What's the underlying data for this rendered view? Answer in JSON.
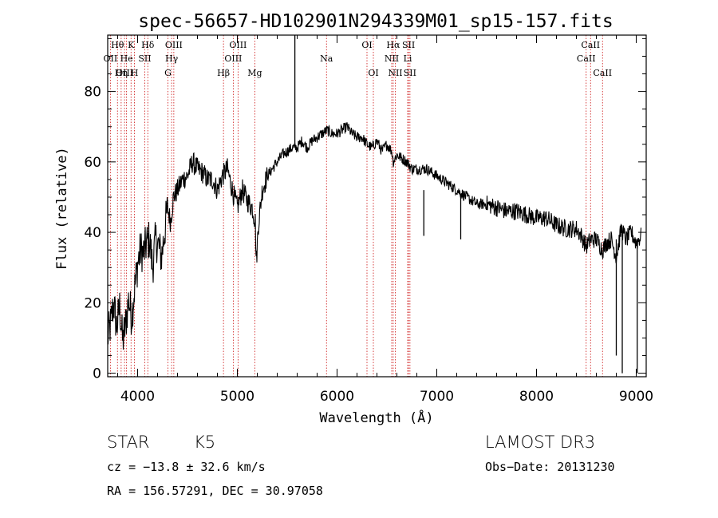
{
  "chart_data": {
    "type": "line",
    "title": "spec-56657-HD102901N294339M01_sp15-157.fits",
    "xlabel": "Wavelength (Å)",
    "ylabel": "Flux (relative)",
    "xlim": [
      3700,
      9100
    ],
    "ylim": [
      -1,
      96
    ],
    "xticks": [
      4000,
      5000,
      6000,
      7000,
      8000,
      9000
    ],
    "yticks": [
      0,
      20,
      40,
      60,
      80
    ],
    "series": [
      {
        "name": "flux",
        "x": [
          3700,
          3730,
          3760,
          3790,
          3820,
          3850,
          3880,
          3910,
          3940,
          3970,
          4000,
          4030,
          4060,
          4090,
          4120,
          4150,
          4180,
          4210,
          4240,
          4270,
          4300,
          4330,
          4360,
          4400,
          4450,
          4500,
          4550,
          4600,
          4650,
          4700,
          4750,
          4800,
          4850,
          4900,
          4950,
          5000,
          5050,
          5100,
          5150,
          5180,
          5190,
          5210,
          5250,
          5300,
          5350,
          5400,
          5450,
          5500,
          5550,
          5600,
          5650,
          5700,
          5750,
          5800,
          5850,
          5900,
          5950,
          6000,
          6050,
          6100,
          6150,
          6200,
          6250,
          6300,
          6350,
          6400,
          6450,
          6500,
          6550,
          6563,
          6600,
          6650,
          6700,
          6750,
          6800,
          6900,
          7000,
          7100,
          7200,
          7250,
          7300,
          7400,
          7500,
          7600,
          7700,
          7800,
          7900,
          8000,
          8100,
          8200,
          8300,
          8400,
          8450,
          8498,
          8542,
          8600,
          8662,
          8700,
          8750,
          8800,
          8850,
          8900,
          8950,
          9000,
          9050
        ],
        "y": [
          10,
          14,
          20,
          13,
          19,
          9,
          14,
          21,
          16,
          24,
          31,
          35,
          34,
          37,
          38,
          30,
          38,
          36,
          33,
          40,
          47,
          43,
          50,
          52,
          55,
          56,
          60,
          58,
          57,
          55,
          55,
          52,
          56,
          58,
          52,
          47,
          52,
          49,
          47,
          43,
          31,
          42,
          52,
          56,
          58,
          60,
          62,
          63,
          64,
          64,
          66,
          64,
          66,
          67,
          68,
          69,
          68,
          68,
          69,
          70,
          68,
          67,
          67,
          65,
          64,
          66,
          63,
          65,
          63,
          60,
          62,
          61,
          60,
          58,
          58,
          58,
          56,
          54,
          52,
          51,
          50,
          48,
          48,
          47,
          46,
          46,
          45,
          44,
          44,
          42,
          41,
          41,
          39,
          36,
          38,
          38,
          35,
          37,
          38,
          33,
          41,
          38,
          40,
          37,
          39
        ]
      }
    ],
    "features": [
      {
        "x": 5577,
        "y_top": 96,
        "y_bottom": 64,
        "note": "sharp emission spike"
      },
      {
        "x": 6870,
        "y_top": 52,
        "y_bottom": 39,
        "note": "absorption dip"
      },
      {
        "x": 7240,
        "y_top": 51,
        "y_bottom": 38,
        "note": "absorption dip"
      },
      {
        "x": 8800,
        "y_top": 38,
        "y_bottom": 5,
        "note": "absorption dip"
      },
      {
        "x": 8860,
        "y_top": 40,
        "y_bottom": 0,
        "note": "absorption dip"
      },
      {
        "x": 9010,
        "y_top": 38,
        "y_bottom": 0,
        "note": "absorption dip"
      }
    ],
    "lines": [
      {
        "label": "Hθ",
        "x": 3798,
        "row": 0
      },
      {
        "label": "OII",
        "x": 3727,
        "row": 1
      },
      {
        "label": "OIII",
        "x": 3869,
        "row": 2
      },
      {
        "label": "He",
        "x": 3889,
        "row": 1
      },
      {
        "label": "Hη",
        "x": 3835,
        "row": 2
      },
      {
        "label": "K",
        "x": 3934,
        "row": 0
      },
      {
        "label": "H",
        "x": 3968,
        "row": 2
      },
      {
        "label": "SII",
        "x": 4072,
        "row": 1
      },
      {
        "label": "Hδ",
        "x": 4102,
        "row": 0
      },
      {
        "label": "OIII",
        "x": 4363,
        "row": 0
      },
      {
        "label": "Hγ",
        "x": 4341,
        "row": 1
      },
      {
        "label": "G",
        "x": 4304,
        "row": 2
      },
      {
        "label": "Hβ",
        "x": 4861,
        "row": 2
      },
      {
        "label": "OIII",
        "x": 4959,
        "row": 1
      },
      {
        "label": "OIII",
        "x": 5007,
        "row": 0
      },
      {
        "label": "Mg",
        "x": 5175,
        "row": 2
      },
      {
        "label": "Na",
        "x": 5894,
        "row": 1
      },
      {
        "label": "OI",
        "x": 6300,
        "row": 0
      },
      {
        "label": "OI",
        "x": 6364,
        "row": 2
      },
      {
        "label": "Hα",
        "x": 6563,
        "row": 0
      },
      {
        "label": "NII",
        "x": 6548,
        "row": 1
      },
      {
        "label": "NII",
        "x": 6584,
        "row": 2
      },
      {
        "label": "SII",
        "x": 6717,
        "row": 0
      },
      {
        "label": "Li",
        "x": 6708,
        "row": 1
      },
      {
        "label": "SII",
        "x": 6731,
        "row": 2
      },
      {
        "label": "CaII",
        "x": 8498,
        "row": 1
      },
      {
        "label": "CaII",
        "x": 8542,
        "row": 0
      },
      {
        "label": "CaII",
        "x": 8662,
        "row": 2
      }
    ]
  },
  "info": {
    "object_class": "STAR",
    "subclass": "K5",
    "survey": "LAMOST DR3",
    "cz": "cz = −13.8 ± 32.6 km/s",
    "obs_date": "Obs−Date: 20131230",
    "coords": "RA = 156.57291, DEC =  30.97058"
  },
  "colors": {
    "line_marker": "#cc1010",
    "spectrum": "#000000",
    "axes": "#000000"
  }
}
